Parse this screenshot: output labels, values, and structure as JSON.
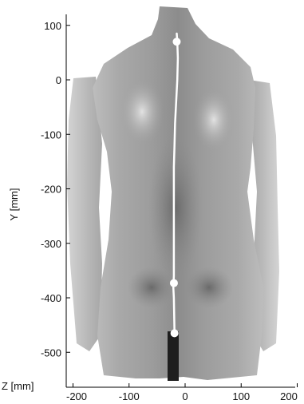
{
  "chart_data": {
    "type": "scatter",
    "title": "",
    "xlabel": "Z [mm]",
    "ylabel": "Y [mm]",
    "xlim": [
      -200,
      200
    ],
    "ylim": [
      -560,
      130
    ],
    "xticks": [
      -200,
      -100,
      0,
      100,
      200
    ],
    "yticks": [
      100,
      0,
      -100,
      -200,
      -300,
      -400,
      -500
    ],
    "grid": false,
    "background": "grayscale height-map image of a human back (surface topography)",
    "spine_line": {
      "color": "#ffffff",
      "x": [
        -15,
        -14,
        -13,
        -14,
        -16,
        -18,
        -19,
        -20,
        -20,
        -20,
        -20,
        -20,
        -20,
        -21,
        -20,
        -19
      ],
      "y": [
        85,
        70,
        40,
        0,
        -40,
        -80,
        -120,
        -160,
        -200,
        -240,
        -280,
        -320,
        -360,
        -380,
        -400,
        -465
      ]
    },
    "landmarks": {
      "color": "#ffffff",
      "x": [
        -15,
        -20,
        -19
      ],
      "y": [
        70,
        -373,
        -465
      ]
    }
  }
}
